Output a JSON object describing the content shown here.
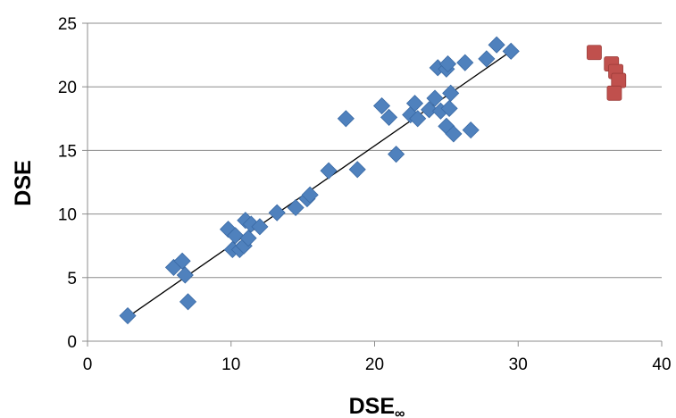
{
  "chart_data": {
    "type": "scatter",
    "title": "",
    "xlabel": "DSE∞",
    "ylabel": "DSE",
    "xlim": [
      0,
      40
    ],
    "ylim": [
      0,
      25
    ],
    "x_ticks": [
      0,
      10,
      20,
      30,
      40
    ],
    "y_ticks": [
      0,
      5,
      10,
      15,
      20,
      25
    ],
    "grid": "horizontal",
    "legend": "none",
    "series": [
      {
        "marker": "diamond",
        "color": "#4f81bd",
        "points": [
          [
            2.8,
            2.0
          ],
          [
            6.0,
            5.8
          ],
          [
            6.6,
            6.3
          ],
          [
            6.8,
            5.2
          ],
          [
            7.0,
            3.1
          ],
          [
            9.8,
            8.8
          ],
          [
            10.1,
            7.2
          ],
          [
            10.3,
            8.3
          ],
          [
            10.6,
            7.2
          ],
          [
            10.9,
            7.5
          ],
          [
            11.0,
            9.5
          ],
          [
            11.2,
            8.1
          ],
          [
            11.4,
            9.2
          ],
          [
            12.0,
            9.0
          ],
          [
            13.2,
            10.1
          ],
          [
            14.5,
            10.5
          ],
          [
            15.3,
            11.2
          ],
          [
            15.5,
            11.5
          ],
          [
            16.8,
            13.4
          ],
          [
            18.0,
            17.5
          ],
          [
            18.8,
            13.5
          ],
          [
            20.5,
            18.5
          ],
          [
            21.0,
            17.6
          ],
          [
            21.5,
            14.7
          ],
          [
            22.5,
            17.8
          ],
          [
            22.8,
            18.7
          ],
          [
            23.0,
            17.5
          ],
          [
            23.8,
            18.2
          ],
          [
            24.2,
            19.1
          ],
          [
            24.4,
            21.5
          ],
          [
            24.6,
            18.1
          ],
          [
            25.0,
            21.4
          ],
          [
            25.2,
            18.3
          ],
          [
            25.3,
            19.5
          ],
          [
            25.1,
            21.8
          ],
          [
            25.0,
            16.9
          ],
          [
            25.5,
            16.3
          ],
          [
            26.3,
            21.9
          ],
          [
            26.7,
            16.6
          ],
          [
            27.8,
            22.2
          ],
          [
            28.5,
            23.3
          ],
          [
            29.5,
            22.8
          ]
        ]
      },
      {
        "marker": "square",
        "color": "#c0504d",
        "points": [
          [
            35.3,
            22.7
          ],
          [
            36.5,
            21.8
          ],
          [
            36.8,
            21.2
          ],
          [
            37.0,
            20.5
          ],
          [
            36.7,
            19.5
          ]
        ]
      }
    ],
    "trendline": {
      "x": [
        2.8,
        29.5
      ],
      "y": [
        1.9,
        22.8
      ]
    }
  }
}
